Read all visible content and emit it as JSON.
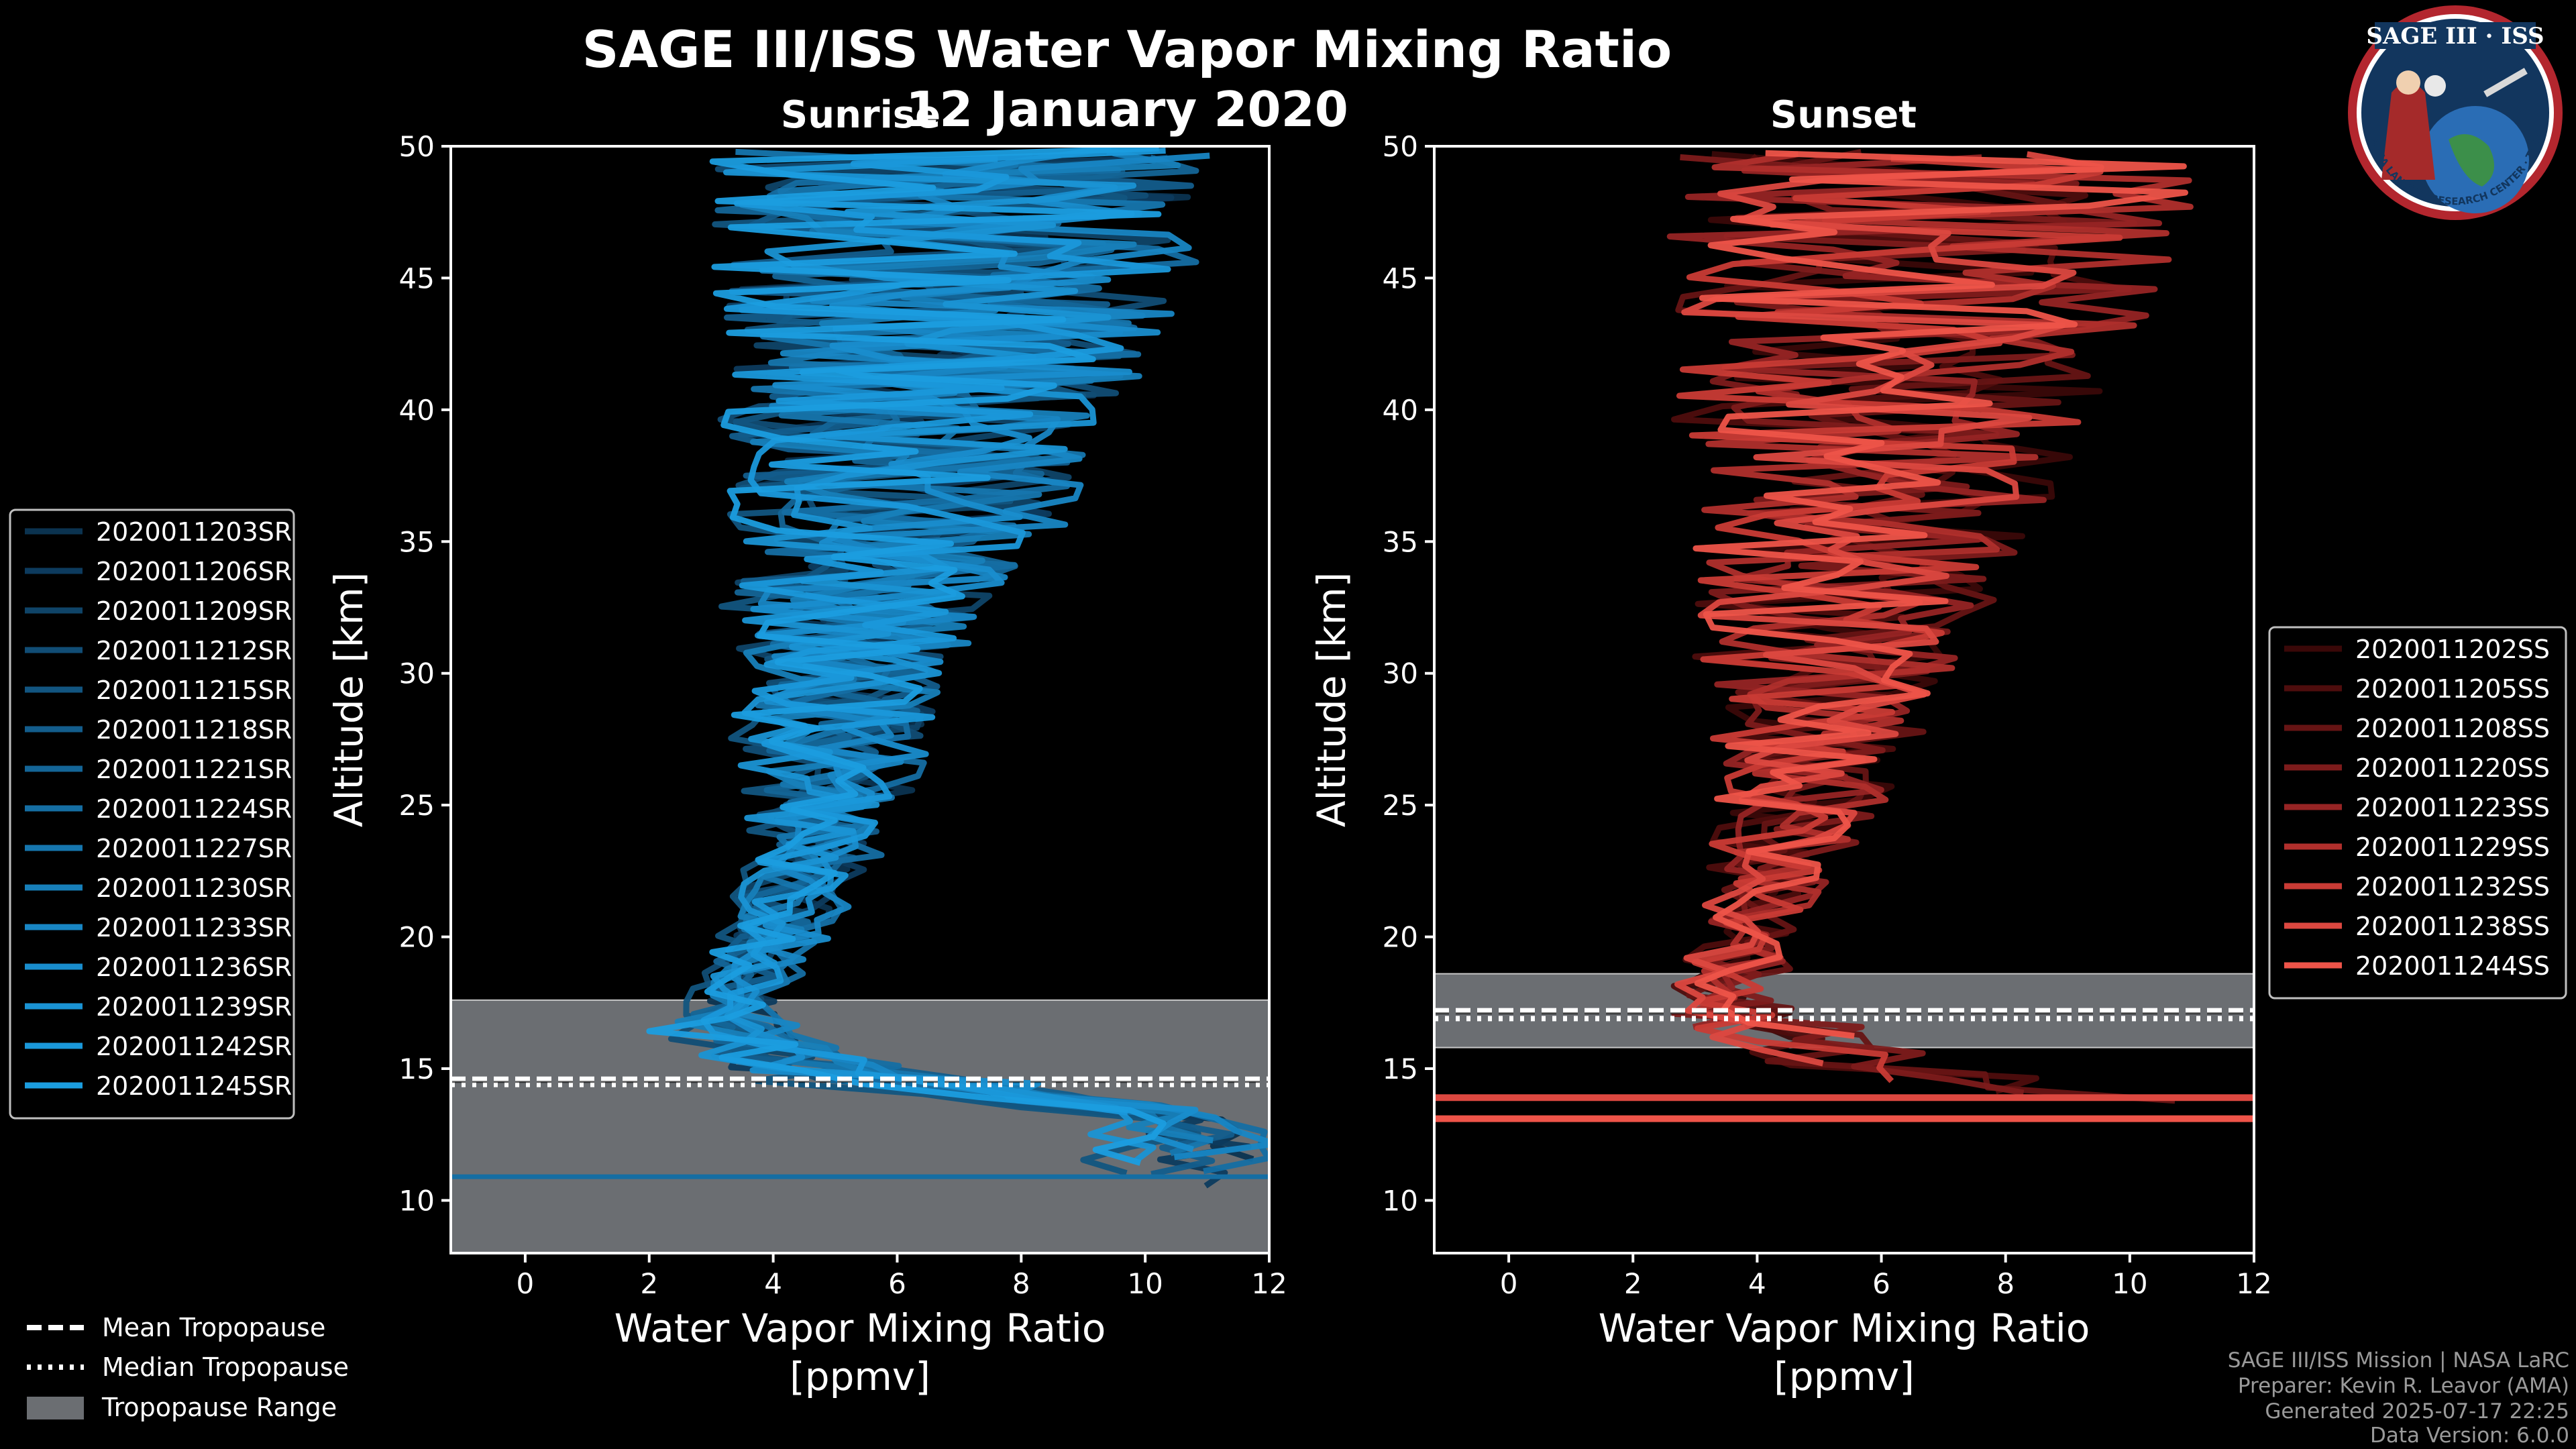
{
  "header": {
    "title": "SAGE III/ISS Water Vapor Mixing Ratio",
    "date": "12 January 2020",
    "left_subtitle": "Sunrise",
    "right_subtitle": "Sunset"
  },
  "badge": {
    "title": "SAGE III · ISS",
    "ring_text": "BALL · NASA LANGLEY RESEARCH CENTER · TAS-I · ESA"
  },
  "footer": {
    "line1": "SAGE III/ISS Mission | NASA LaRC",
    "line2": "Preparer: Kevin R. Leavor (AMA)",
    "line3": "Generated 2025-07-17 22:25",
    "line4": "Data Version: 6.0.0"
  },
  "tropo_legend": [
    {
      "label": "Mean Tropopause",
      "style": "dashed"
    },
    {
      "label": "Median Tropopause",
      "style": "dotted"
    },
    {
      "label": "Tropopause Range",
      "style": "patch"
    }
  ],
  "colors": {
    "sunrise": "#1a8fd6",
    "sunset": "#f0564a",
    "tropo_patch": "#6b6e72",
    "background": "#000000"
  },
  "chart_data": [
    {
      "type": "line",
      "panel": "Sunrise",
      "xlabel": "Water Vapor Mixing Ratio\n[ppmv]",
      "ylabel": "Altitude [km]",
      "xlim": [
        -1.2,
        12
      ],
      "ylim": [
        8,
        50
      ],
      "xticks": [
        0,
        2,
        4,
        6,
        8,
        10,
        12
      ],
      "yticks": [
        10,
        15,
        20,
        25,
        30,
        35,
        40,
        45,
        50
      ],
      "tropopause": {
        "min": 8,
        "max": 17.6,
        "mean": 14.6,
        "median": 14.4
      },
      "series": [
        "2020011203SR",
        "2020011206SR",
        "2020011209SR",
        "2020011212SR",
        "2020011215SR",
        "2020011218SR",
        "2020011221SR",
        "2020011224SR",
        "2020011227SR",
        "2020011230SR",
        "2020011233SR",
        "2020011236SR",
        "2020011239SR",
        "2020011242SR",
        "2020011245SR"
      ],
      "profile": {
        "center_alt": [
          13,
          15,
          16.5,
          18,
          20,
          23,
          26,
          30,
          35,
          40,
          45,
          50
        ],
        "center_val": [
          9.5,
          4.5,
          3.2,
          3.5,
          4.0,
          4.6,
          5.0,
          5.2,
          5.8,
          6.5,
          7.0,
          7.0
        ],
        "spread": [
          2.5,
          1.5,
          1.0,
          0.6,
          0.7,
          0.9,
          1.3,
          1.8,
          2.4,
          3.2,
          3.8,
          4.0
        ]
      }
    },
    {
      "type": "line",
      "panel": "Sunset",
      "xlabel": "Water Vapor Mixing Ratio\n[ppmv]",
      "ylabel": "Altitude [km]",
      "xlim": [
        -1.2,
        12
      ],
      "ylim": [
        8,
        50
      ],
      "xticks": [
        0,
        2,
        4,
        6,
        8,
        10,
        12
      ],
      "yticks": [
        10,
        15,
        20,
        25,
        30,
        35,
        40,
        45,
        50
      ],
      "tropopause": {
        "min": 15.8,
        "max": 18.6,
        "mean": 17.2,
        "median": 16.9
      },
      "series": [
        "2020011202SS",
        "2020011205SS",
        "2020011208SS",
        "2020011220SS",
        "2020011223SS",
        "2020011229SS",
        "2020011232SS",
        "2020011238SS",
        "2020011244SS"
      ],
      "profile": {
        "center_alt": [
          13,
          15,
          17,
          18,
          20,
          23,
          26,
          30,
          35,
          40,
          45,
          50
        ],
        "center_val": [
          9.0,
          6.0,
          3.5,
          3.3,
          3.8,
          4.2,
          4.6,
          5.0,
          5.4,
          6.0,
          6.5,
          6.5
        ],
        "spread": [
          3.0,
          2.0,
          1.2,
          0.8,
          0.8,
          1.0,
          1.4,
          1.9,
          2.6,
          3.4,
          4.2,
          4.5
        ]
      }
    }
  ]
}
